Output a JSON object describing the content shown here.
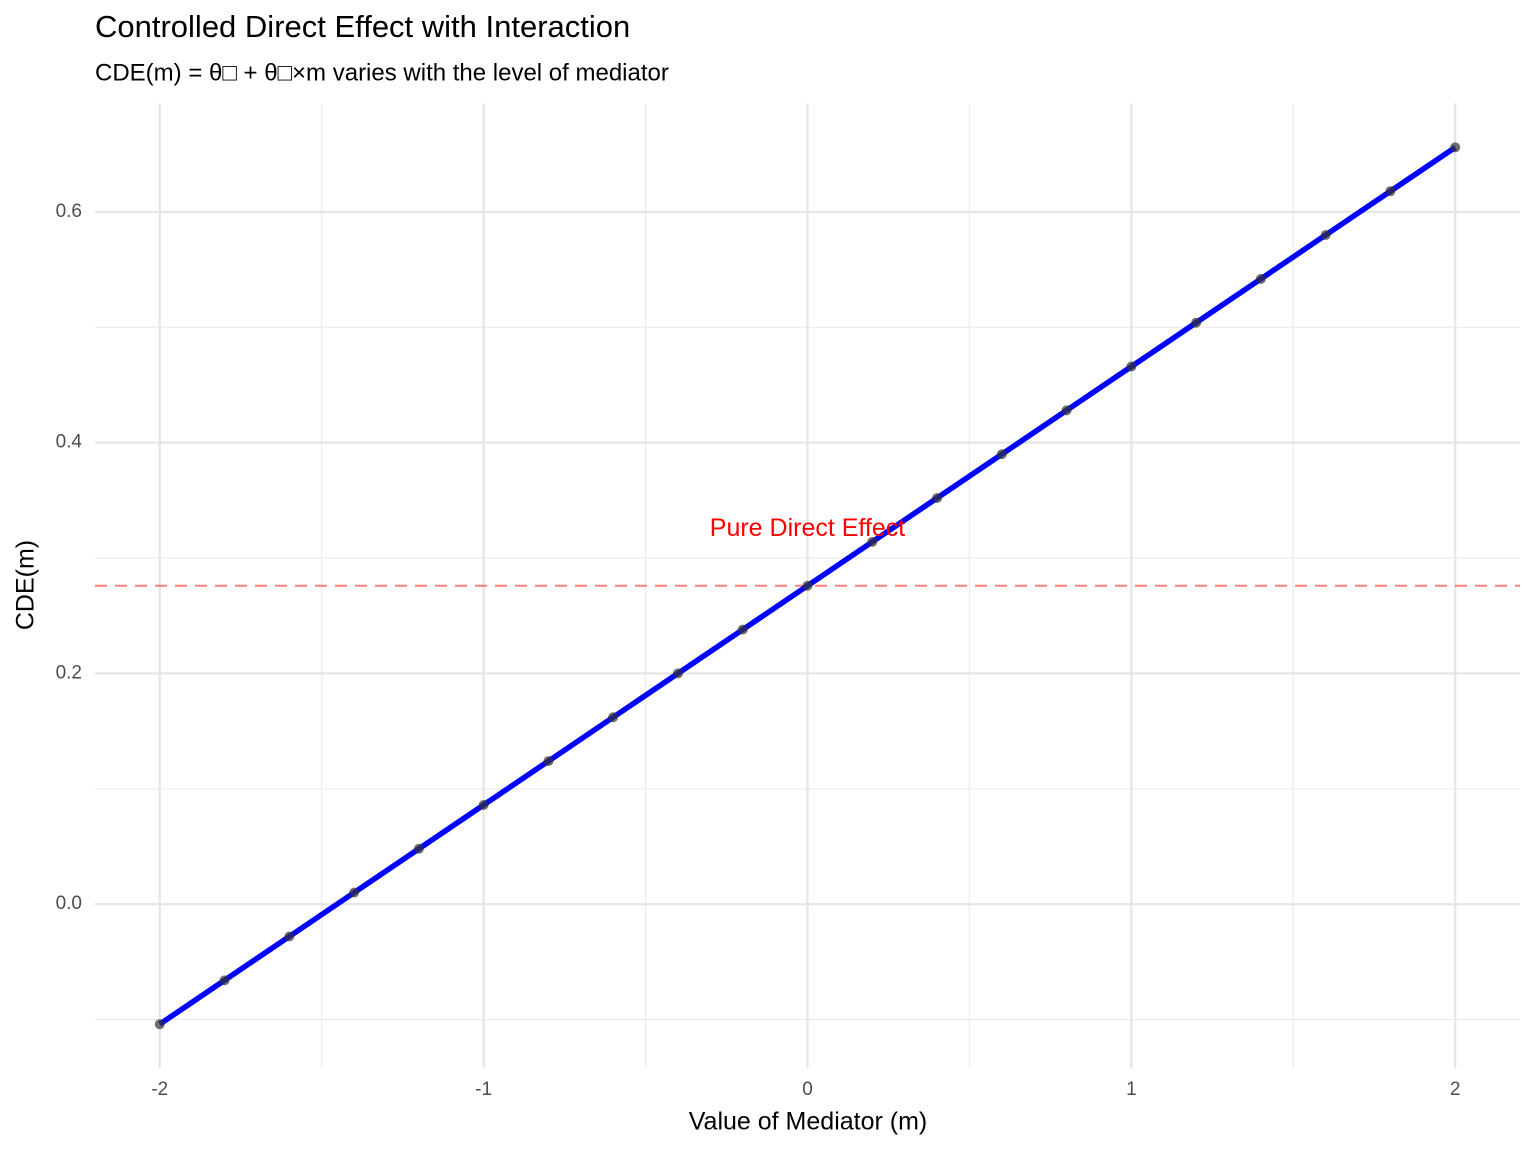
{
  "chart_data": {
    "type": "line",
    "title": "Controlled Direct Effect with Interaction",
    "subtitle": "CDE(m) = θ□ + θ□×m varies with the level of mediator",
    "x_label": "Value of Mediator (m)",
    "y_label": "CDE(m)",
    "x": [
      -2,
      -1.8,
      -1.6,
      -1.4,
      -1.2,
      -1,
      -0.8,
      -0.6,
      -0.4,
      -0.2,
      0,
      0.2,
      0.4,
      0.6,
      0.8,
      1,
      1.2,
      1.4,
      1.6,
      1.8,
      2
    ],
    "values": [
      -0.104,
      -0.066,
      -0.028,
      0.01,
      0.048,
      0.086,
      0.124,
      0.162,
      0.2,
      0.238,
      0.276,
      0.314,
      0.352,
      0.39,
      0.428,
      0.466,
      0.504,
      0.542,
      0.58,
      0.618,
      0.656
    ],
    "color": "#0000ff",
    "point_color": "#333333",
    "xlim": [
      -2.2,
      2.2
    ],
    "ylim": [
      -0.142,
      0.694
    ],
    "xticks": [
      -2,
      -1,
      0,
      1,
      2
    ],
    "yticks": [
      {
        "value": 0,
        "label": "0.0"
      },
      0.2,
      0.4,
      0.6
    ],
    "x_minor_grid": [
      -1.5,
      -0.5,
      0.5,
      1.5
    ],
    "y_minor_grid": [
      -0.1,
      0.1,
      0.3,
      0.5
    ],
    "grid": true,
    "hline": {
      "value": 0.276,
      "color": "#ff0000"
    },
    "annotation": {
      "text": "Pure Direct Effect",
      "x": 0,
      "y": 0.325,
      "color": "#ff0000"
    }
  }
}
